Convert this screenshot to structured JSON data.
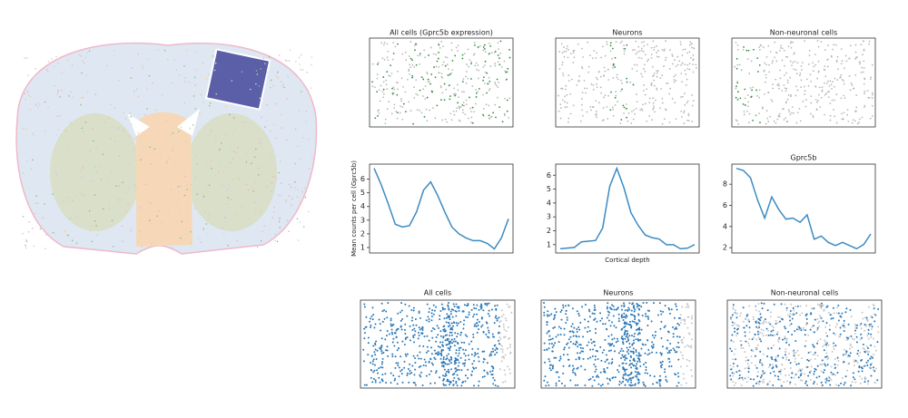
{
  "image_panels": {
    "top_titles": [
      "All cells (Gprc5b expression)",
      "Neurons",
      "Non-neuronal cells"
    ],
    "bottom_titles": [
      "All cells",
      "Neurons",
      "Non-neuronal cells"
    ]
  },
  "chart_data": [
    {
      "type": "line",
      "ylabel": "Mean counts per cell (Gprc5b)",
      "color": "#3b8bc2",
      "values": [
        6.8,
        5.6,
        4.2,
        2.7,
        2.5,
        2.6,
        3.6,
        5.2,
        5.8,
        4.8,
        3.6,
        2.5,
        2.0,
        1.7,
        1.5,
        1.5,
        1.3,
        0.9,
        1.7,
        3.1
      ],
      "ylim": [
        0.6,
        7.1
      ],
      "yticks": [
        1,
        2,
        3,
        4,
        5,
        6
      ]
    },
    {
      "type": "line",
      "xlabel": "Cortical depth",
      "color": "#3b8bc2",
      "values": [
        0.7,
        0.75,
        0.8,
        1.2,
        1.25,
        1.3,
        2.2,
        5.2,
        6.5,
        5.1,
        3.3,
        2.4,
        1.7,
        1.5,
        1.4,
        1.0,
        1.0,
        0.7,
        0.75,
        1.0
      ],
      "ylim": [
        0.4,
        6.8
      ],
      "yticks": [
        1,
        2,
        3,
        4,
        5,
        6
      ]
    },
    {
      "type": "line",
      "title": "Gprc5b",
      "color": "#3b8bc2",
      "values": [
        9.5,
        9.3,
        8.6,
        6.5,
        4.8,
        6.8,
        5.6,
        4.7,
        4.8,
        4.4,
        5.1,
        2.8,
        3.1,
        2.5,
        2.2,
        2.5,
        2.2,
        1.9,
        2.3,
        3.3
      ],
      "ylim": [
        1.5,
        9.9
      ],
      "yticks": [
        2,
        4,
        6,
        8
      ]
    }
  ]
}
